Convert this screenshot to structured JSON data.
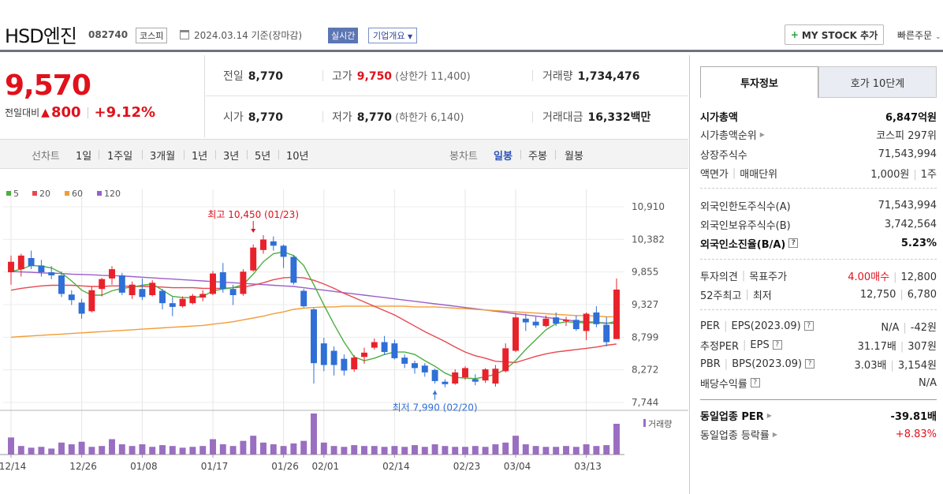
{
  "header": {
    "name": "HSD엔진",
    "code": "082740",
    "market": "코스피",
    "date": "2024.03.14  기준(장마감)",
    "realtime": "실시간",
    "overview": "기업개요",
    "mystock_label": "MY STOCK 추가",
    "quick_order": "빠른주문"
  },
  "price": {
    "current": "9,570",
    "change_label": "전일대비",
    "change_amount": "800",
    "change_pct": "+9.12%"
  },
  "stats": {
    "prev_label": "전일",
    "prev": "8,770",
    "high_label": "고가",
    "high": "9,750",
    "upper_limit_label": "(상한가 11,400)",
    "volume_label": "거래량",
    "volume": "1,734,476",
    "open_label": "시가",
    "open": "8,770",
    "low_label": "저가",
    "low": "8,770",
    "lower_limit_label": "(하한가 6,140)",
    "amount_label": "거래대금",
    "amount": "16,332",
    "amount_unit": "백만"
  },
  "period_tabs": {
    "line_label": "선차트",
    "line": [
      "1일",
      "1주일",
      "3개월",
      "1년",
      "3년",
      "5년",
      "10년"
    ],
    "candle_label": "봉차트",
    "candle": [
      "일봉",
      "주봉",
      "월봉"
    ],
    "candle_active": 0
  },
  "side": {
    "tab_invest": "투자정보",
    "tab_orderbook": "호가 10단계",
    "mktcap_label": "시가총액",
    "mktcap": "6,847억원",
    "mktcap_rank_label": "시가총액순위",
    "mktcap_rank": "코스피 297위",
    "shares_label": "상장주식수",
    "shares": "71,543,994",
    "facevalue_label": "액면가",
    "unit_label": "매매단위",
    "facevalue": "1,000원",
    "unit": "1주",
    "foreign_limit_label": "외국인한도주식수(A)",
    "foreign_limit": "71,543,994",
    "foreign_hold_label": "외국인보유주식수(B)",
    "foreign_hold": "3,742,564",
    "foreign_ratio_label": "외국인소진율(B/A)",
    "foreign_ratio": "5.23%",
    "opinion_label": "투자의견",
    "target_label": "목표주가",
    "opinion": "4.00매수",
    "target": "12,800",
    "wk52_high_label": "52주최고",
    "wk52_low_label": "최저",
    "wk52_high": "12,750",
    "wk52_low": "6,780",
    "per_label": "PER",
    "eps_label": "EPS(2023.09)",
    "per": "N/A",
    "eps": "-42원",
    "est_per_label": "추정PER",
    "est_eps_label": "EPS",
    "est_per": "31.17배",
    "est_eps": "307원",
    "pbr_label": "PBR",
    "bps_label": "BPS(2023.09)",
    "pbr": "3.03배",
    "bps": "3,154원",
    "dividend_label": "배당수익률",
    "dividend": "N/A",
    "sector_per_label": "동일업종 PER",
    "sector_per": "-39.81배",
    "sector_chg_label": "동일업종 등락률",
    "sector_chg": "+8.83%"
  },
  "chart_data": {
    "type": "candlestick",
    "legend": [
      {
        "name": "5",
        "color": "#4caf3e"
      },
      {
        "name": "20",
        "color": "#e8484f"
      },
      {
        "name": "60",
        "color": "#f29c38"
      },
      {
        "name": "120",
        "color": "#9b5fc9"
      }
    ],
    "y_ticks": [
      "10,910",
      "10,382",
      "9,855",
      "9,327",
      "8,799",
      "8,272",
      "7,744"
    ],
    "ylim": [
      7744,
      10910
    ],
    "x_ticks": [
      {
        "label": "12/14",
        "index": 0
      },
      {
        "label": "12/26",
        "index": 7
      },
      {
        "label": "01/08",
        "index": 13
      },
      {
        "label": "01/17",
        "index": 20
      },
      {
        "label": "01/26",
        "index": 27
      },
      {
        "label": "02/01",
        "index": 31
      },
      {
        "label": "02/14",
        "index": 38
      },
      {
        "label": "02/23",
        "index": 45
      },
      {
        "label": "03/04",
        "index": 50
      },
      {
        "label": "03/13",
        "index": 57
      }
    ],
    "annotations": [
      {
        "text": "최고 10,450 (01/23)",
        "index": 24,
        "value": 10450
      },
      {
        "text": "최저 7,990 (02/20)",
        "index": 42,
        "value": 7990
      }
    ],
    "volume_label": "거래량",
    "candles": [
      {
        "o": 9850,
        "h": 10120,
        "l": 9650,
        "c": 10020
      },
      {
        "o": 9900,
        "h": 10150,
        "l": 9780,
        "c": 10120
      },
      {
        "o": 10080,
        "h": 10200,
        "l": 9900,
        "c": 9950
      },
      {
        "o": 9960,
        "h": 10050,
        "l": 9780,
        "c": 9850
      },
      {
        "o": 9850,
        "h": 9950,
        "l": 9740,
        "c": 9800
      },
      {
        "o": 9800,
        "h": 9860,
        "l": 9450,
        "c": 9500
      },
      {
        "o": 9490,
        "h": 9560,
        "l": 9320,
        "c": 9400
      },
      {
        "o": 9360,
        "h": 9420,
        "l": 9100,
        "c": 9180
      },
      {
        "o": 9220,
        "h": 9620,
        "l": 9200,
        "c": 9560
      },
      {
        "o": 9580,
        "h": 9760,
        "l": 9460,
        "c": 9740
      },
      {
        "o": 9750,
        "h": 9950,
        "l": 9650,
        "c": 9900
      },
      {
        "o": 9800,
        "h": 9840,
        "l": 9480,
        "c": 9520
      },
      {
        "o": 9480,
        "h": 9700,
        "l": 9420,
        "c": 9650
      },
      {
        "o": 9580,
        "h": 9750,
        "l": 9400,
        "c": 9450
      },
      {
        "o": 9480,
        "h": 9720,
        "l": 9460,
        "c": 9680
      },
      {
        "o": 9550,
        "h": 9580,
        "l": 9250,
        "c": 9350
      },
      {
        "o": 9350,
        "h": 9450,
        "l": 9140,
        "c": 9290
      },
      {
        "o": 9300,
        "h": 9460,
        "l": 9280,
        "c": 9420
      },
      {
        "o": 9350,
        "h": 9500,
        "l": 9330,
        "c": 9470
      },
      {
        "o": 9440,
        "h": 9560,
        "l": 9380,
        "c": 9500
      },
      {
        "o": 9500,
        "h": 9870,
        "l": 9480,
        "c": 9830
      },
      {
        "o": 9850,
        "h": 10000,
        "l": 9520,
        "c": 9580
      },
      {
        "o": 9580,
        "h": 9650,
        "l": 9320,
        "c": 9480
      },
      {
        "o": 9500,
        "h": 9900,
        "l": 9470,
        "c": 9860
      },
      {
        "o": 9880,
        "h": 10300,
        "l": 9860,
        "c": 10250
      },
      {
        "o": 10210,
        "h": 10450,
        "l": 10150,
        "c": 10380
      },
      {
        "o": 10350,
        "h": 10430,
        "l": 10200,
        "c": 10280
      },
      {
        "o": 10280,
        "h": 10300,
        "l": 9920,
        "c": 10100
      },
      {
        "o": 10100,
        "h": 10130,
        "l": 9650,
        "c": 9680
      },
      {
        "o": 9550,
        "h": 9580,
        "l": 9280,
        "c": 9300
      },
      {
        "o": 9250,
        "h": 9270,
        "l": 8050,
        "c": 8380
      },
      {
        "o": 8700,
        "h": 8790,
        "l": 8250,
        "c": 8350
      },
      {
        "o": 8580,
        "h": 8650,
        "l": 8180,
        "c": 8350
      },
      {
        "o": 8450,
        "h": 8520,
        "l": 8180,
        "c": 8260
      },
      {
        "o": 8280,
        "h": 8510,
        "l": 8240,
        "c": 8470
      },
      {
        "o": 8480,
        "h": 8630,
        "l": 8370,
        "c": 8550
      },
      {
        "o": 8630,
        "h": 8780,
        "l": 8600,
        "c": 8720
      },
      {
        "o": 8720,
        "h": 8820,
        "l": 8510,
        "c": 8560
      },
      {
        "o": 8700,
        "h": 8760,
        "l": 8440,
        "c": 8460
      },
      {
        "o": 8470,
        "h": 8520,
        "l": 8300,
        "c": 8370
      },
      {
        "o": 8380,
        "h": 8420,
        "l": 8210,
        "c": 8300
      },
      {
        "o": 8340,
        "h": 8380,
        "l": 8160,
        "c": 8230
      },
      {
        "o": 8270,
        "h": 8290,
        "l": 8050,
        "c": 8090
      },
      {
        "o": 8080,
        "h": 8120,
        "l": 7990,
        "c": 8040
      },
      {
        "o": 8050,
        "h": 8280,
        "l": 8030,
        "c": 8230
      },
      {
        "o": 8150,
        "h": 8330,
        "l": 8110,
        "c": 8300
      },
      {
        "o": 8120,
        "h": 8200,
        "l": 8020,
        "c": 8080
      },
      {
        "o": 8100,
        "h": 8300,
        "l": 8060,
        "c": 8280
      },
      {
        "o": 8050,
        "h": 8350,
        "l": 8000,
        "c": 8290
      },
      {
        "o": 8250,
        "h": 8700,
        "l": 8230,
        "c": 8620
      },
      {
        "o": 8580,
        "h": 9180,
        "l": 8560,
        "c": 9120
      },
      {
        "o": 9100,
        "h": 9180,
        "l": 8900,
        "c": 9040
      },
      {
        "o": 9050,
        "h": 9130,
        "l": 8950,
        "c": 8990
      },
      {
        "o": 8980,
        "h": 9150,
        "l": 8960,
        "c": 9100
      },
      {
        "o": 9120,
        "h": 9200,
        "l": 8980,
        "c": 9020
      },
      {
        "o": 9060,
        "h": 9130,
        "l": 8980,
        "c": 9080
      },
      {
        "o": 9080,
        "h": 9150,
        "l": 8900,
        "c": 8930
      },
      {
        "o": 8900,
        "h": 9200,
        "l": 8750,
        "c": 9180
      },
      {
        "o": 9200,
        "h": 9300,
        "l": 8960,
        "c": 9010
      },
      {
        "o": 9000,
        "h": 9130,
        "l": 8650,
        "c": 8720
      },
      {
        "o": 8770,
        "h": 9750,
        "l": 8770,
        "c": 9570
      }
    ],
    "volume": [
      20,
      10,
      8,
      9,
      7,
      14,
      12,
      15,
      9,
      10,
      18,
      12,
      10,
      12,
      9,
      11,
      10,
      8,
      9,
      10,
      18,
      12,
      10,
      16,
      22,
      14,
      12,
      10,
      13,
      16,
      48,
      14,
      10,
      9,
      11,
      10,
      10,
      9,
      10,
      9,
      11,
      9,
      12,
      10,
      9,
      9,
      10,
      9,
      12,
      14,
      22,
      12,
      10,
      9,
      9,
      10,
      9,
      12,
      10,
      11,
      36
    ],
    "ma5": [
      9860,
      9900,
      9960,
      9950,
      9920,
      9840,
      9710,
      9560,
      9480,
      9480,
      9550,
      9590,
      9610,
      9640,
      9660,
      9560,
      9460,
      9440,
      9440,
      9460,
      9550,
      9580,
      9600,
      9650,
      9820,
      10020,
      10150,
      10180,
      10120,
      9960,
      9650,
      9320,
      9010,
      8720,
      8480,
      8420,
      8460,
      8520,
      8560,
      8560,
      8520,
      8420,
      8330,
      8220,
      8150,
      8140,
      8130,
      8160,
      8200,
      8280,
      8420,
      8600,
      8760,
      8920,
      9020,
      9050,
      9040,
      9030,
      9040,
      9020,
      9060
    ],
    "ma20": [
      9560,
      9590,
      9610,
      9630,
      9640,
      9640,
      9640,
      9630,
      9620,
      9620,
      9630,
      9630,
      9620,
      9620,
      9620,
      9610,
      9600,
      9600,
      9600,
      9590,
      9590,
      9590,
      9600,
      9610,
      9640,
      9680,
      9730,
      9760,
      9770,
      9760,
      9720,
      9660,
      9590,
      9510,
      9440,
      9370,
      9300,
      9230,
      9160,
      9070,
      8980,
      8890,
      8810,
      8730,
      8640,
      8560,
      8500,
      8460,
      8410,
      8400,
      8390,
      8440,
      8490,
      8530,
      8560,
      8580,
      8600,
      8620,
      8640,
      8670,
      8690
    ],
    "ma60": [
      8800,
      8810,
      8820,
      8830,
      8840,
      8850,
      8860,
      8870,
      8880,
      8890,
      8900,
      8910,
      8920,
      8930,
      8940,
      8950,
      8960,
      8970,
      8980,
      8990,
      9010,
      9030,
      9050,
      9080,
      9110,
      9140,
      9180,
      9210,
      9250,
      9270,
      9280,
      9290,
      9290,
      9300,
      9300,
      9300,
      9300,
      9300,
      9300,
      9300,
      9290,
      9290,
      9290,
      9280,
      9270,
      9260,
      9250,
      9240,
      9230,
      9220,
      9210,
      9200,
      9190,
      9180,
      9170,
      9160,
      9150,
      9150,
      9140,
      9130,
      9130
    ],
    "ma120": [
      9860,
      9855,
      9850,
      9840,
      9835,
      9830,
      9820,
      9815,
      9810,
      9800,
      9795,
      9790,
      9780,
      9770,
      9760,
      9750,
      9740,
      9730,
      9720,
      9710,
      9700,
      9690,
      9680,
      9670,
      9660,
      9650,
      9640,
      9630,
      9620,
      9600,
      9580,
      9560,
      9540,
      9520,
      9500,
      9480,
      9460,
      9440,
      9420,
      9400,
      9380,
      9360,
      9340,
      9320,
      9300,
      9280,
      9260,
      9240,
      9220,
      9200,
      9180,
      9160,
      9140,
      9120,
      9100,
      9080,
      9060,
      9050,
      9040,
      9030,
      9020
    ]
  }
}
